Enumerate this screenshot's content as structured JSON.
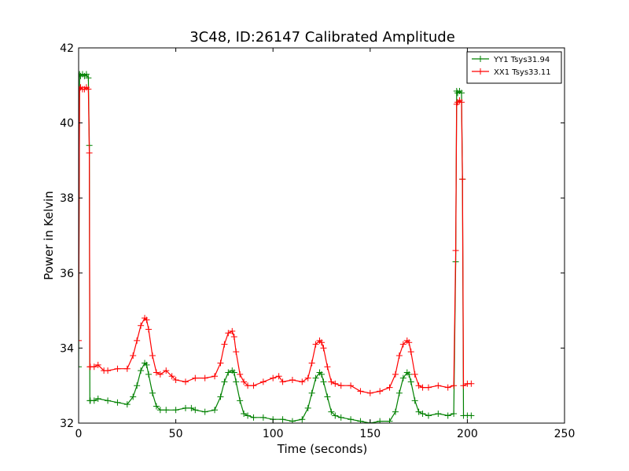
{
  "chart_data": {
    "type": "line",
    "title": "3C48, ID:26147 Calibrated Amplitude",
    "xlabel": "Time (seconds)",
    "ylabel": "Power in Kelvin",
    "xlim": [
      0,
      250
    ],
    "ylim": [
      32,
      42
    ],
    "xticks": [
      0,
      50,
      100,
      150,
      200,
      250
    ],
    "yticks": [
      32,
      34,
      36,
      38,
      40,
      42
    ],
    "grid": false,
    "legend_position": "top-right",
    "marker": "plus",
    "series": [
      {
        "name": "YY1 Tsys31.94",
        "color": "#008000",
        "x": [
          0,
          0.5,
          1,
          2,
          3,
          4,
          5,
          5.5,
          5.8,
          6,
          8,
          10,
          15,
          20,
          25,
          28,
          30,
          32,
          34,
          35,
          36,
          38,
          40,
          42,
          45,
          50,
          55,
          58,
          60,
          65,
          70,
          73,
          75,
          77,
          79,
          80,
          81,
          83,
          85,
          87,
          90,
          95,
          100,
          105,
          110,
          115,
          118,
          120,
          122,
          124,
          125,
          126,
          128,
          130,
          132,
          135,
          140,
          145,
          150,
          155,
          160,
          163,
          165,
          167,
          169,
          170,
          171,
          173,
          175,
          177,
          180,
          185,
          190,
          193,
          194,
          194.5,
          195,
          196,
          197,
          197.5,
          198,
          200,
          202
        ],
        "values": [
          33.5,
          41.3,
          41.25,
          41.3,
          41.25,
          41.3,
          41.2,
          39.4,
          32.6,
          32.6,
          32.6,
          32.65,
          32.6,
          32.55,
          32.5,
          32.7,
          33.0,
          33.4,
          33.6,
          33.55,
          33.3,
          32.8,
          32.45,
          32.35,
          32.35,
          32.35,
          32.4,
          32.4,
          32.35,
          32.3,
          32.35,
          32.7,
          33.1,
          33.35,
          33.4,
          33.35,
          33.1,
          32.6,
          32.25,
          32.2,
          32.15,
          32.15,
          32.1,
          32.1,
          32.05,
          32.1,
          32.4,
          32.8,
          33.2,
          33.35,
          33.3,
          33.1,
          32.7,
          32.3,
          32.2,
          32.15,
          32.1,
          32.05,
          32.0,
          32.05,
          32.05,
          32.3,
          32.8,
          33.2,
          33.35,
          33.3,
          33.1,
          32.6,
          32.3,
          32.25,
          32.2,
          32.25,
          32.2,
          32.25,
          36.3,
          40.85,
          40.8,
          40.85,
          40.8,
          38.5,
          32.2,
          32.2,
          32.2
        ]
      },
      {
        "name": "XX1 Tsys33.11",
        "color": "#ff0000",
        "x": [
          0,
          0.5,
          1,
          2,
          3,
          4,
          5,
          5.5,
          5.8,
          6,
          8,
          10,
          13,
          15,
          20,
          25,
          28,
          30,
          32,
          34,
          35,
          36,
          38,
          40,
          42,
          45,
          48,
          50,
          55,
          60,
          65,
          70,
          73,
          75,
          77,
          79,
          80,
          81,
          83,
          85,
          87,
          90,
          95,
          100,
          103,
          105,
          110,
          115,
          118,
          120,
          122,
          124,
          125,
          126,
          128,
          130,
          132,
          135,
          140,
          145,
          150,
          155,
          160,
          163,
          165,
          167,
          169,
          170,
          171,
          173,
          175,
          177,
          180,
          185,
          190,
          193,
          194,
          194.5,
          195,
          196,
          197,
          197.5,
          198,
          200,
          202
        ],
        "values": [
          34.2,
          40.9,
          40.95,
          40.9,
          40.9,
          40.95,
          40.9,
          39.2,
          33.5,
          33.5,
          33.5,
          33.55,
          33.4,
          33.4,
          33.45,
          33.45,
          33.8,
          34.2,
          34.6,
          34.8,
          34.75,
          34.5,
          33.8,
          33.35,
          33.3,
          33.4,
          33.25,
          33.15,
          33.1,
          33.2,
          33.2,
          33.25,
          33.6,
          34.1,
          34.4,
          34.45,
          34.3,
          33.9,
          33.3,
          33.1,
          33.0,
          33.0,
          33.1,
          33.2,
          33.25,
          33.1,
          33.15,
          33.1,
          33.2,
          33.6,
          34.1,
          34.2,
          34.15,
          34.0,
          33.5,
          33.1,
          33.05,
          33.0,
          33.0,
          32.85,
          32.8,
          32.85,
          32.95,
          33.3,
          33.8,
          34.1,
          34.2,
          34.15,
          33.9,
          33.3,
          33.0,
          32.95,
          32.95,
          33.0,
          32.95,
          33.0,
          36.6,
          40.5,
          40.55,
          40.6,
          40.55,
          38.5,
          33.0,
          33.05,
          33.05
        ]
      }
    ]
  }
}
